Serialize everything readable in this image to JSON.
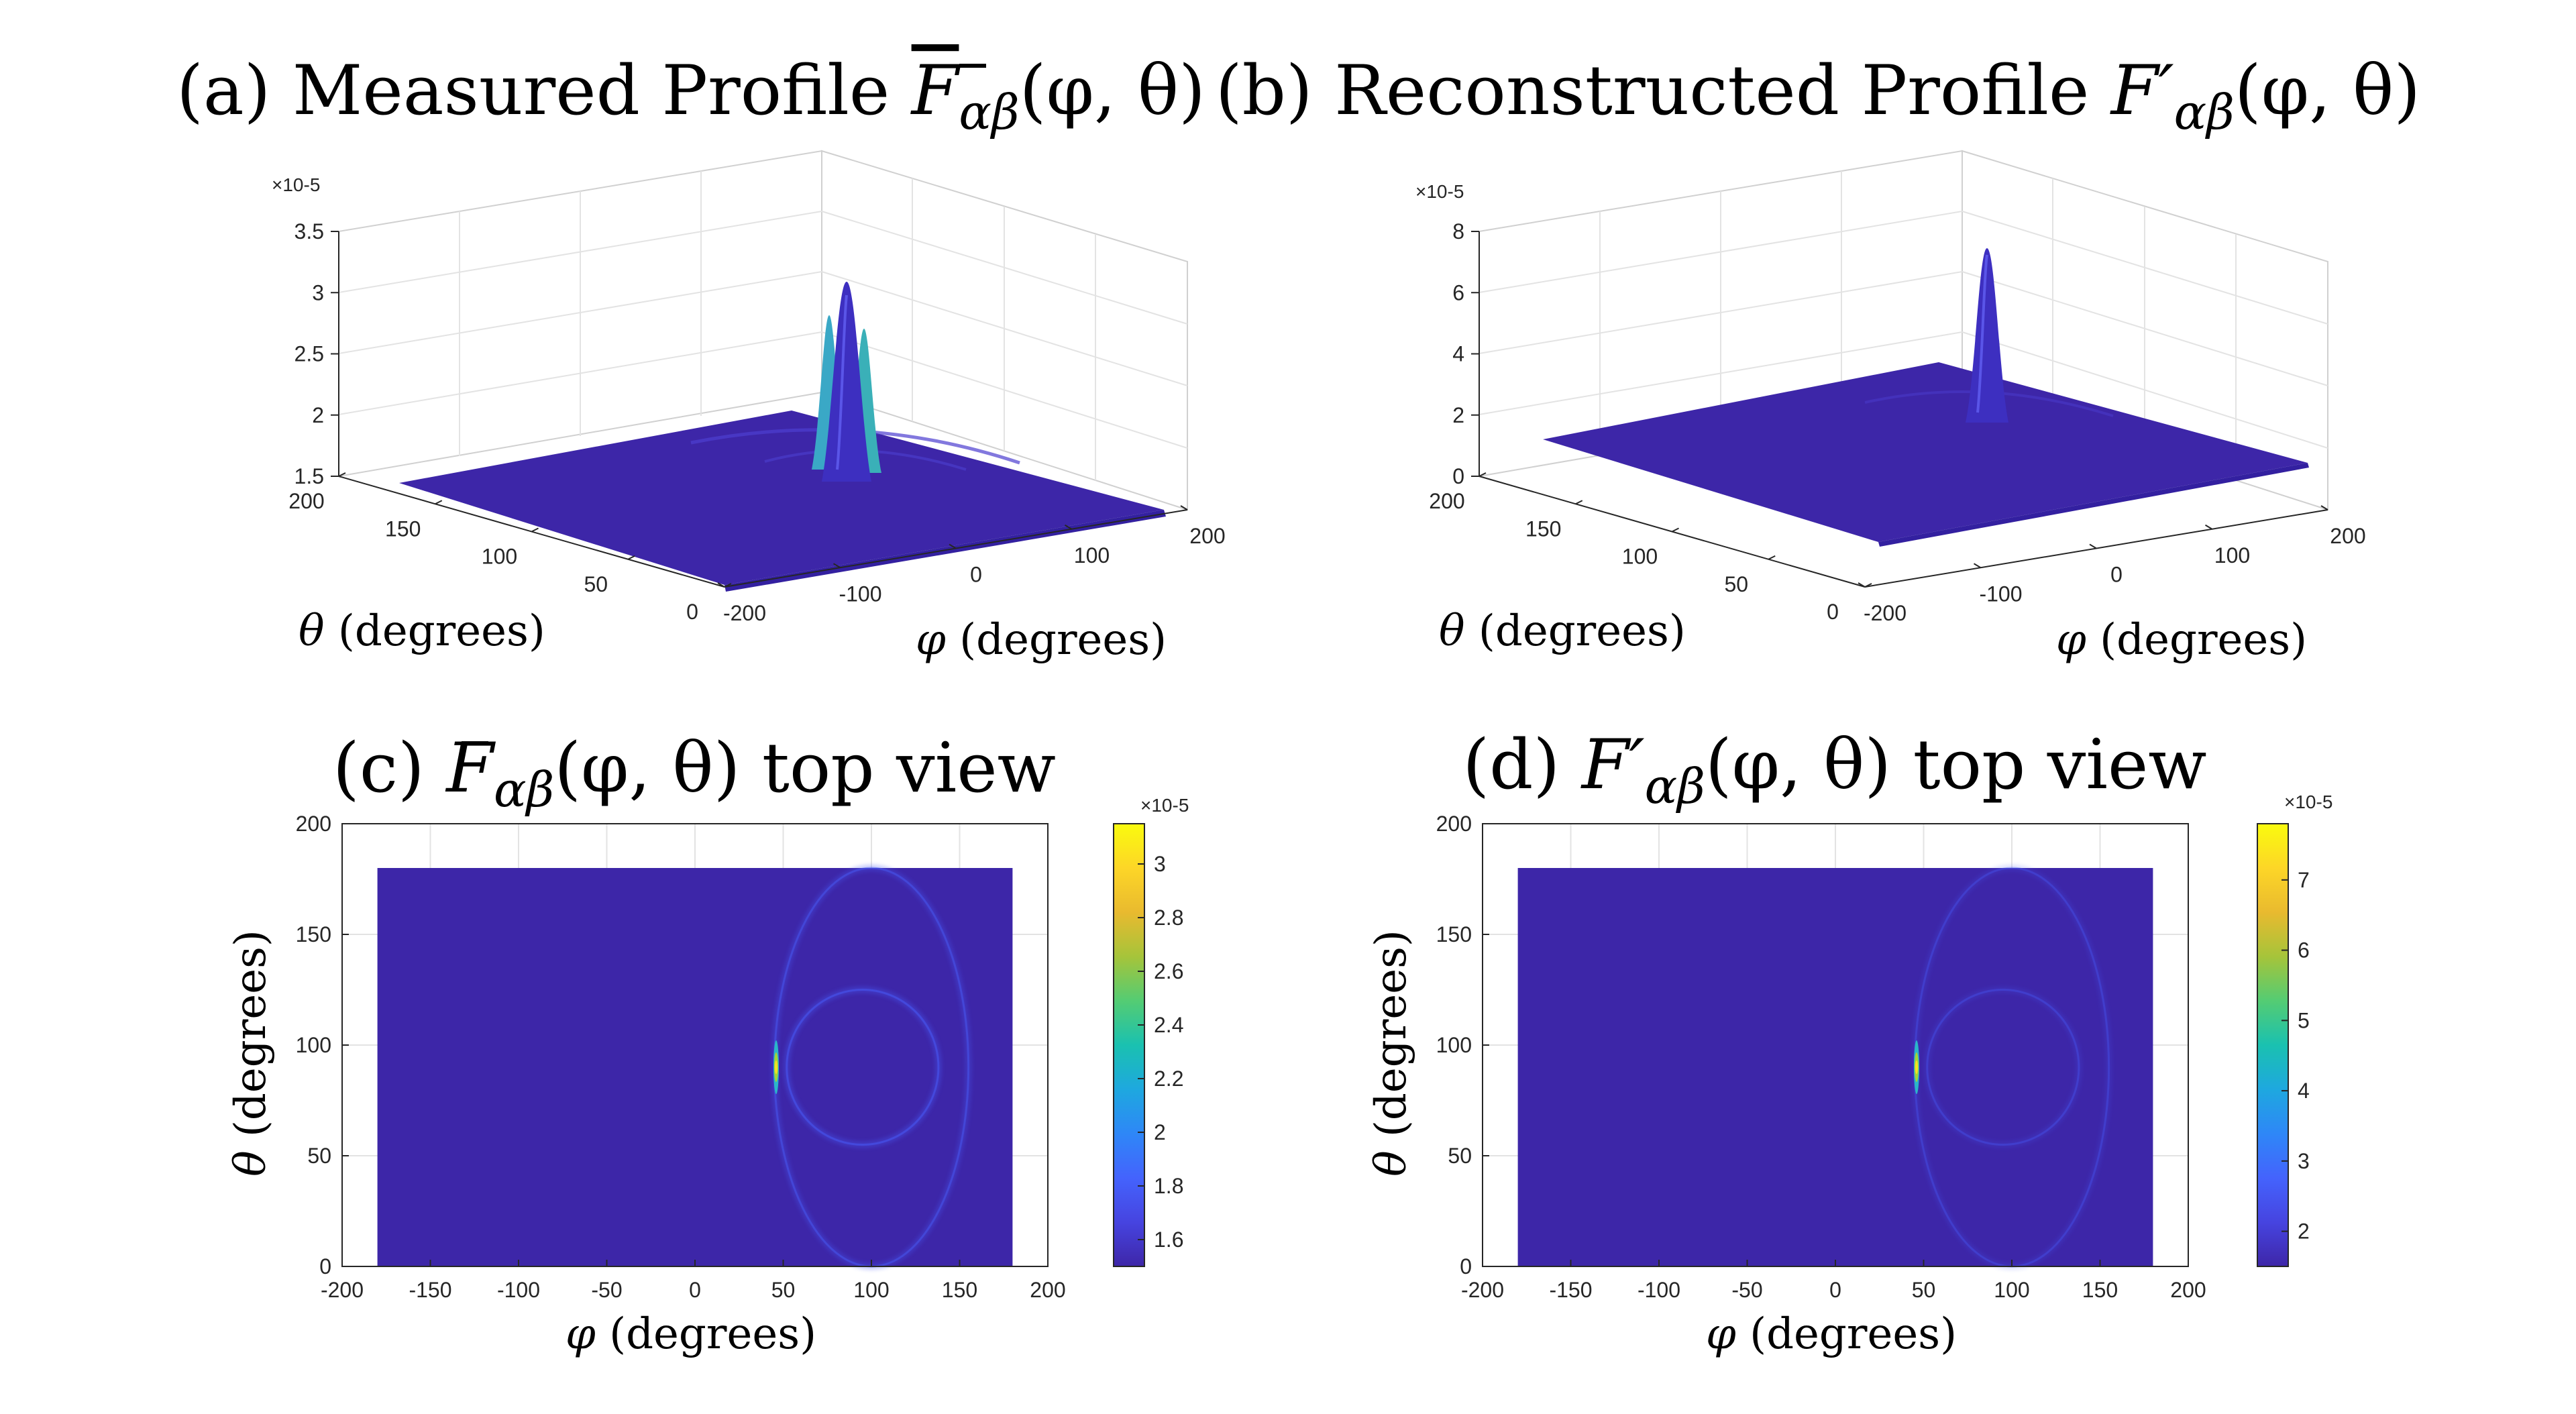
{
  "chart_data": [
    {
      "panel": "a",
      "type": "surface",
      "title": {
        "prefix": "(a) Measured Profile ",
        "symbol": "F",
        "subscript": "αβ",
        "args": "(φ, θ)"
      },
      "xlabel": {
        "symbol": "φ",
        "text": " (degrees)"
      },
      "ylabel": {
        "symbol": "θ",
        "text": " (degrees)"
      },
      "zlim": [
        1.5,
        3.5
      ],
      "z_ticks": [
        "1.5",
        "2",
        "2.5",
        "3",
        "3.5"
      ],
      "z_exponent": "×10-5",
      "x_ticks": [
        "-200",
        "-100",
        "0",
        "100",
        "200"
      ],
      "y_ticks": [
        "0",
        "50",
        "100",
        "150",
        "200"
      ],
      "peak": {
        "phi": 45,
        "theta": 90,
        "value": 3.1
      }
    },
    {
      "panel": "b",
      "type": "surface",
      "title": {
        "prefix": "(b) Reconstructed Profile ",
        "symbol": "F′",
        "subscript": "αβ",
        "args": "(φ, θ)"
      },
      "xlabel": {
        "symbol": "φ",
        "text": " (degrees)"
      },
      "ylabel": {
        "symbol": "θ",
        "text": " (degrees)"
      },
      "zlim": [
        0,
        8
      ],
      "z_ticks": [
        "0",
        "2",
        "4",
        "6",
        "8"
      ],
      "z_exponent": "×10-5",
      "x_ticks": [
        "-200",
        "-100",
        "0",
        "100",
        "200"
      ],
      "y_ticks": [
        "0",
        "50",
        "100",
        "150",
        "200"
      ],
      "peak": {
        "phi": 45,
        "theta": 90,
        "value": 7.5
      }
    },
    {
      "panel": "c",
      "type": "heatmap",
      "title": {
        "prefix": "(c) ",
        "symbol": "F",
        "subscript": "αβ",
        "args": "(φ, θ) top view"
      },
      "xlabel": {
        "symbol": "φ",
        "text": " (degrees)"
      },
      "ylabel": {
        "symbol": "θ",
        "text": " (degrees)"
      },
      "xlim": [
        -200,
        200
      ],
      "ylim": [
        0,
        200
      ],
      "data_extent": {
        "x": [
          -180,
          180
        ],
        "y": [
          0,
          180
        ]
      },
      "x_ticks": [
        "-200",
        "-150",
        "-100",
        "-50",
        "0",
        "50",
        "100",
        "150",
        "200"
      ],
      "y_ticks": [
        "0",
        "50",
        "100",
        "150",
        "200"
      ],
      "colorbar_ticks": [
        "1.6",
        "1.8",
        "2",
        "2.2",
        "2.4",
        "2.6",
        "2.8",
        "3"
      ],
      "colorbar_range": [
        1.5,
        3.15
      ],
      "colorbar_exponent": "×10-5",
      "rings": [
        {
          "cx": 100,
          "cy": 90,
          "rx": 55,
          "ry": 90,
          "strength": 0.3
        },
        {
          "cx": 95,
          "cy": 90,
          "rx": 43,
          "ry": 35,
          "strength": 0.35
        }
      ],
      "hotspot": {
        "phi": 46,
        "theta": 90
      }
    },
    {
      "panel": "d",
      "type": "heatmap",
      "title": {
        "prefix": "(d) ",
        "symbol": "F′",
        "subscript": "αβ",
        "args": "(φ, θ) top view"
      },
      "xlabel": {
        "symbol": "φ",
        "text": " (degrees)"
      },
      "ylabel": {
        "symbol": "θ",
        "text": " (degrees)"
      },
      "xlim": [
        -200,
        200
      ],
      "ylim": [
        0,
        200
      ],
      "data_extent": {
        "x": [
          -180,
          180
        ],
        "y": [
          0,
          180
        ]
      },
      "x_ticks": [
        "-200",
        "-150",
        "-100",
        "-50",
        "0",
        "50",
        "100",
        "150",
        "200"
      ],
      "y_ticks": [
        "0",
        "50",
        "100",
        "150",
        "200"
      ],
      "colorbar_ticks": [
        "2",
        "3",
        "4",
        "5",
        "6",
        "7"
      ],
      "colorbar_range": [
        1.5,
        7.8
      ],
      "colorbar_exponent": "×10-5",
      "rings": [
        {
          "cx": 100,
          "cy": 90,
          "rx": 55,
          "ry": 90,
          "strength": 0.18
        },
        {
          "cx": 95,
          "cy": 90,
          "rx": 43,
          "ry": 35,
          "strength": 0.18
        }
      ],
      "hotspot": {
        "phi": 46,
        "theta": 90
      }
    }
  ],
  "colors": {
    "base": "#3d26a8",
    "ring": "#4758f2",
    "axis": "#262626",
    "grid": "#e3e3e3"
  },
  "colormap": [
    "#3e26a8",
    "#4644e0",
    "#4463fd",
    "#2e87f7",
    "#1ea8df",
    "#1ac1b0",
    "#54cc73",
    "#a6c43a",
    "#e9ba2f",
    "#fdd627",
    "#f9fb0e"
  ]
}
